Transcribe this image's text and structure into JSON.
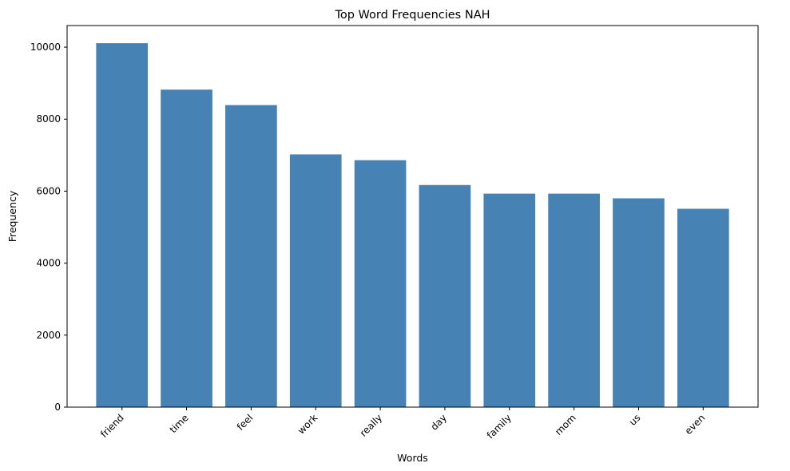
{
  "chart_data": {
    "type": "bar",
    "title": "Top Word Frequencies NAH",
    "xlabel": "Words",
    "ylabel": "Frequency",
    "categories": [
      "friend",
      "time",
      "feel",
      "work",
      "really",
      "day",
      "family",
      "mom",
      "us",
      "even"
    ],
    "values": [
      10110,
      8820,
      8390,
      7020,
      6860,
      6170,
      5930,
      5930,
      5800,
      5510
    ],
    "ylim": [
      0,
      10600
    ],
    "yticks": [
      0,
      2000,
      4000,
      6000,
      8000,
      10000
    ],
    "bar_color": "#4682b4",
    "grid": false,
    "legend": false
  }
}
